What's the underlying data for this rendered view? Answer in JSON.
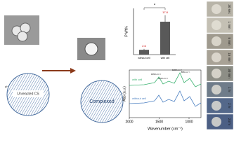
{
  "bar_chart": {
    "type": "bar",
    "y_label": "P Wt%",
    "significance": "*",
    "categories": [
      "without cell",
      "with cell"
    ],
    "values": [
      2.6,
      17.8
    ],
    "errors": [
      0.5,
      3.5
    ],
    "ylim": [
      0,
      25
    ],
    "color": "#595959"
  },
  "ftir": {
    "type": "line",
    "y_label": "Abs (a.u.)",
    "x_label": "Wavenumber (cm⁻¹)",
    "xlim": [
      2000,
      800
    ],
    "xticks": [
      2000,
      1500,
      1000
    ],
    "series": [
      {
        "name": "with cell",
        "color": "#3cb371"
      },
      {
        "name": "without cell",
        "color": "#4a7fc1"
      }
    ],
    "annotations": [
      "1650 cm⁻¹",
      "1400 cm⁻¹",
      "1000 cm⁻¹",
      "895 cm⁻¹"
    ]
  },
  "left": {
    "ph_label": "pH",
    "unreacted": "Unreacted CS"
  },
  "middle": {
    "complexed": "Complexed"
  },
  "time_points": [
    "30 sec",
    "1 min",
    "5 min",
    "15 min",
    "30 min",
    "1 hr",
    "2 hr",
    "24 hr"
  ]
}
